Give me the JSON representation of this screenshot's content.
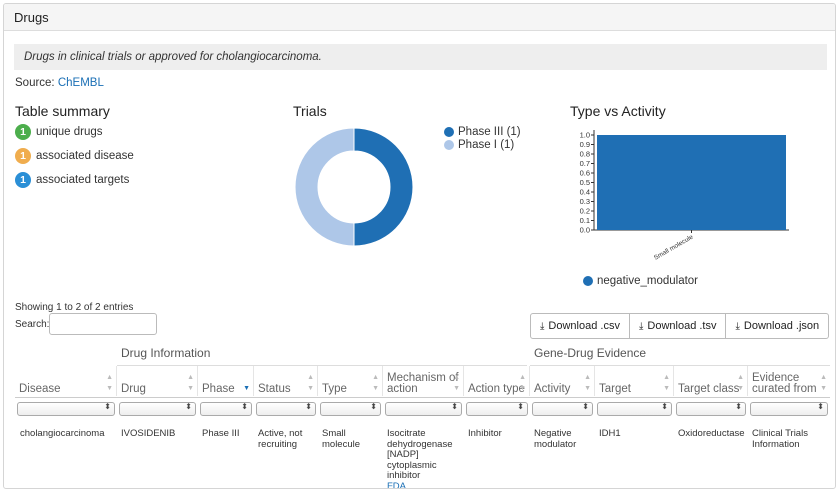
{
  "panel": {
    "title": "Drugs"
  },
  "description": "Drugs in clinical trials or approved for cholangiocarcinoma.",
  "source": {
    "label": "Source:",
    "link": "ChEMBL"
  },
  "summary": {
    "title": "Table summary",
    "items": [
      {
        "count": "1",
        "label": "unique drugs",
        "color": "#4cae4c"
      },
      {
        "count": "1",
        "label": "associated disease",
        "color": "#f0ad4e"
      },
      {
        "count": "1",
        "label": "associated targets",
        "color": "#2b8fd6"
      }
    ]
  },
  "trials": {
    "title": "Trials",
    "legend": [
      {
        "label": "Phase III (1)",
        "color": "#1f6fb4"
      },
      {
        "label": "Phase I (1)",
        "color": "#aec7e8"
      }
    ]
  },
  "type_activity": {
    "title": "Type vs Activity",
    "legend": [
      {
        "label": "negative_modulator",
        "color": "#1f6fb4"
      }
    ]
  },
  "chart_data": [
    {
      "type": "pie",
      "title": "Trials",
      "categories": [
        "Phase III",
        "Phase I"
      ],
      "values": [
        1,
        1
      ],
      "colors": [
        "#1f6fb4",
        "#aec7e8"
      ],
      "donut": true,
      "legend": "right"
    },
    {
      "type": "bar",
      "title": "Type vs Activity",
      "categories": [
        "Small molecule"
      ],
      "series": [
        {
          "name": "negative_modulator",
          "values": [
            1.0
          ],
          "color": "#1f6fb4"
        }
      ],
      "yticks": [
        "0.0",
        "0.1",
        "0.2",
        "0.3",
        "0.4",
        "0.5",
        "0.6",
        "0.7",
        "0.8",
        "0.9",
        "1.0"
      ],
      "ylim": [
        0,
        1.0
      ],
      "legend": "bottom"
    }
  ],
  "table": {
    "info": "Showing 1 to 2 of 2 entries",
    "search_label": "Search:",
    "search_value": "",
    "downloads": [
      "Download .csv",
      "Download .tsv",
      "Download .json"
    ],
    "groups": [
      "Drug Information",
      "Gene-Drug Evidence"
    ],
    "columns": [
      "Disease",
      "Drug",
      "Phase",
      "Status",
      "Type",
      "Mechanism of action",
      "Action type",
      "Activity",
      "Target",
      "Target class",
      "Evidence curated from"
    ],
    "row": {
      "disease": "cholangiocarcinoma",
      "drug": "IVOSIDENIB",
      "phase": "Phase III",
      "status": "Active, not recruiting",
      "type": "Small molecule",
      "mechanism": "Isocitrate dehydrogenase [NADP] cytoplasmic inhibitor",
      "mechanism_link": "FDA",
      "action_type": "Inhibitor",
      "activity": "Negative modulator",
      "target": "IDH1",
      "target_class": "Oxidoreductase",
      "evidence": "Clinical Trials Information"
    }
  }
}
